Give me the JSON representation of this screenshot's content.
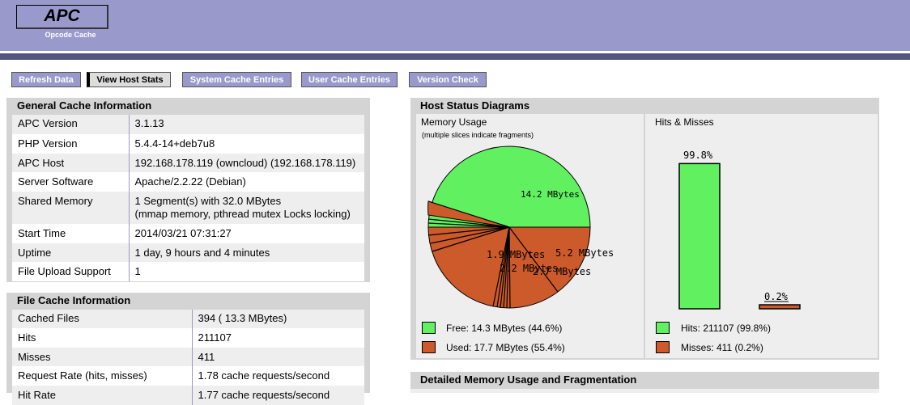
{
  "header": {
    "logo": "APC",
    "subtitle": "Opcode Cache"
  },
  "nav": [
    {
      "label": "Refresh Data",
      "active": false
    },
    {
      "label": "View Host Stats",
      "active": true
    },
    {
      "label": "System Cache Entries",
      "active": false
    },
    {
      "label": "User Cache Entries",
      "active": false
    },
    {
      "label": "Version Check",
      "active": false
    }
  ],
  "general": {
    "title": "General Cache Information",
    "rows": [
      {
        "label": "APC Version",
        "value": "3.1.13"
      },
      {
        "label": "PHP Version",
        "value": "5.4.4-14+deb7u8"
      },
      {
        "label": "APC Host",
        "value": "192.168.178.119 (owncloud) (192.168.178.119)"
      },
      {
        "label": "Server Software",
        "value": "Apache/2.2.22 (Debian)"
      },
      {
        "label": "Shared Memory",
        "value": "1 Segment(s) with 32.0 MBytes",
        "value2": "(mmap memory, pthread mutex Locks locking)"
      },
      {
        "label": "Start Time",
        "value": "2014/03/21 07:31:27"
      },
      {
        "label": "Uptime",
        "value": "1 day, 9 hours and 4 minutes"
      },
      {
        "label": "File Upload Support",
        "value": "1"
      }
    ]
  },
  "file_cache": {
    "title": "File Cache Information",
    "rows": [
      {
        "label": "Cached Files",
        "value": "394 ( 13.3 MBytes)"
      },
      {
        "label": "Hits",
        "value": "211107"
      },
      {
        "label": "Misses",
        "value": "411"
      },
      {
        "label": "Request Rate (hits, misses)",
        "value": "1.78 cache requests/second"
      },
      {
        "label": "Hit Rate",
        "value": "1.77 cache requests/second"
      }
    ]
  },
  "host_status": {
    "title": "Host Status Diagrams",
    "memory": {
      "title": "Memory Usage",
      "note": "(multiple slices indicate fragments)",
      "labels": [
        "14.2 MBytes",
        "5.2 MBytes",
        "1.9 MBytes",
        "2.2 MBytes",
        "2.7 MBytes"
      ],
      "legend_free": "Free: 14.3 MBytes (44.6%)",
      "legend_used": "Used: 17.7 MBytes (55.4%)"
    },
    "hits": {
      "title": "Hits & Misses",
      "hits_pct": "99.8%",
      "misses_pct": "0.2%",
      "hits_value": 99.8,
      "misses_value": 0.2,
      "legend_hits": "Hits: 211107 (99.8%)",
      "legend_misses": "Misses: 411 (0.2%)"
    },
    "colors": {
      "free": "#60f060",
      "used": "#cc5a2a"
    }
  },
  "detailed": {
    "title": "Detailed Memory Usage and Fragmentation"
  }
}
